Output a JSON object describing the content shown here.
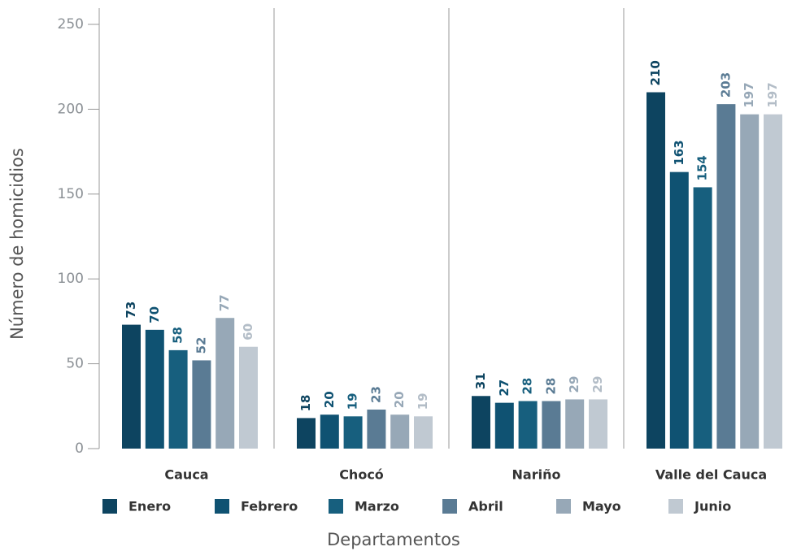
{
  "chart_data": {
    "type": "bar",
    "x_label": "Departamentos",
    "y_label": "Número de homicidios",
    "categories": [
      "Cauca",
      "Chocó",
      "Nariño",
      "Valle del Cauca"
    ],
    "series": [
      {
        "name": "Enero",
        "color": "#0d4460",
        "values": [
          73,
          18,
          31,
          210
        ]
      },
      {
        "name": "Febrero",
        "color": "#0f5272",
        "values": [
          70,
          20,
          27,
          163
        ]
      },
      {
        "name": "Marzo",
        "color": "#175f7e",
        "values": [
          58,
          19,
          28,
          154
        ]
      },
      {
        "name": "Abril",
        "color": "#5a7b94",
        "values": [
          52,
          23,
          28,
          203
        ]
      },
      {
        "name": "Mayo",
        "color": "#97a8b7",
        "values": [
          77,
          20,
          29,
          197
        ]
      },
      {
        "name": "Junio",
        "color": "#c0c9d2",
        "values": [
          60,
          19,
          29,
          197
        ]
      }
    ],
    "ylim": [
      0,
      250
    ],
    "yticks": [
      0,
      50,
      100,
      150,
      200,
      250
    ],
    "legend": "bottom"
  }
}
